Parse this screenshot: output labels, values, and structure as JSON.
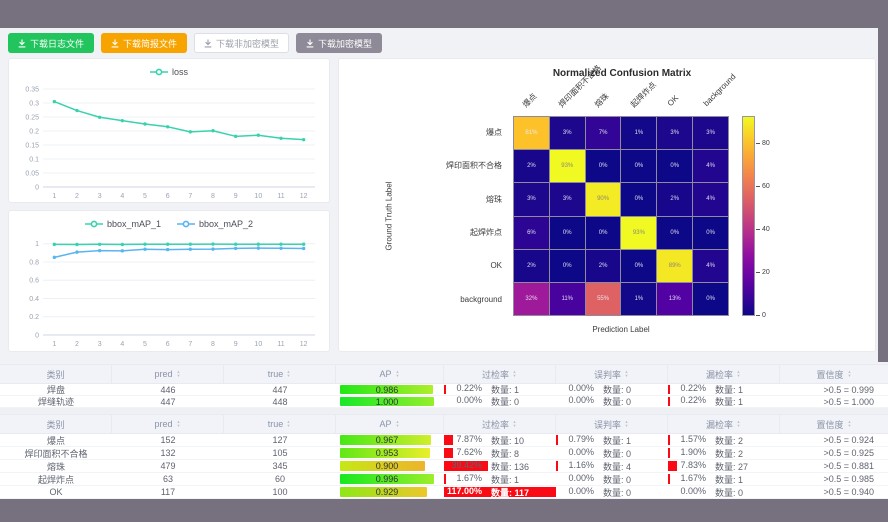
{
  "toolbar": {
    "buttons": [
      {
        "id": "download-log",
        "label": "下载日志文件",
        "style": "green"
      },
      {
        "id": "download-report",
        "label": "下载简报文件",
        "style": "orange"
      },
      {
        "id": "download-plain-model",
        "label": "下载非加密模型",
        "style": "plain"
      },
      {
        "id": "download-encrypted-model",
        "label": "下载加密模型",
        "style": "gray"
      }
    ]
  },
  "chart_data": [
    {
      "type": "line",
      "name": "loss-chart",
      "x": [
        "1",
        "2",
        "3",
        "4",
        "5",
        "6",
        "7",
        "8",
        "9",
        "10",
        "11",
        "12"
      ],
      "series": [
        {
          "name": "loss",
          "color": "#3ad2ae",
          "values": [
            0.305,
            0.273,
            0.249,
            0.237,
            0.225,
            0.215,
            0.197,
            0.201,
            0.181,
            0.185,
            0.174,
            0.169
          ]
        }
      ],
      "yticks": [
        "0",
        "0.05",
        "0.1",
        "0.15",
        "0.2",
        "0.25",
        "0.3",
        "0.35"
      ],
      "ymax": 0.35,
      "legend_position": "top"
    },
    {
      "type": "line",
      "name": "bbox-map-chart",
      "x": [
        "1",
        "2",
        "3",
        "4",
        "5",
        "6",
        "7",
        "8",
        "9",
        "10",
        "11",
        "12"
      ],
      "series": [
        {
          "name": "bbox_mAP_1",
          "color": "#3ad2ae",
          "values": [
            0.993,
            0.992,
            0.994,
            0.992,
            0.995,
            0.995,
            0.995,
            0.996,
            0.995,
            0.995,
            0.995,
            0.995
          ]
        },
        {
          "name": "bbox_mAP_2",
          "color": "#59b4f2",
          "values": [
            0.851,
            0.908,
            0.924,
            0.922,
            0.94,
            0.936,
            0.94,
            0.941,
            0.949,
            0.952,
            0.95,
            0.948
          ]
        }
      ],
      "yticks": [
        "0",
        "0.2",
        "0.4",
        "0.6",
        "0.8",
        "1"
      ],
      "ymax": 1.03,
      "legend_position": "top"
    },
    {
      "type": "heatmap",
      "name": "confusion-matrix",
      "title": "Normalized Confusion Matrix",
      "xlabel": "Prediction Label",
      "ylabel": "Ground Truth Label",
      "labels": [
        "爆点",
        "焊印面积不合格",
        "熔珠",
        "起焊炸点",
        "OK",
        "background"
      ],
      "rows": [
        [
          81,
          3,
          7,
          1,
          3,
          3
        ],
        [
          2,
          93,
          0,
          0,
          0,
          4
        ],
        [
          3,
          3,
          90,
          0,
          2,
          4
        ],
        [
          6,
          0,
          0,
          93,
          0,
          0
        ],
        [
          2,
          0,
          2,
          0,
          89,
          4
        ],
        [
          32,
          11,
          55,
          1,
          13,
          0
        ]
      ],
      "unit": "%",
      "vmax": 93,
      "colorbar_ticks": [
        0,
        20,
        40,
        60,
        80
      ],
      "colormap": "plasma"
    }
  ],
  "confusion_matrix_ref": 2,
  "tables": {
    "headers": [
      "类别",
      "pred",
      "true",
      "AP",
      "过检率",
      "误判率",
      "漏检率",
      "置信度"
    ],
    "qty_label": "数量:",
    "groups": [
      {
        "rows": [
          {
            "cls": "焊盘",
            "pred": "446",
            "true": "447",
            "ap": "0.986",
            "ap_v": 0.986,
            "rates": [
              {
                "pct": "0.22%",
                "qty": "1",
                "v": 0.22
              },
              {
                "pct": "0.00%",
                "qty": "0",
                "v": 0
              },
              {
                "pct": "0.22%",
                "qty": "1",
                "v": 0.22
              }
            ],
            "conf": ">0.5 = 0.999"
          },
          {
            "cls": "焊缝轨迹",
            "pred": "447",
            "true": "448",
            "ap": "1.000",
            "ap_v": 1.0,
            "rates": [
              {
                "pct": "0.00%",
                "qty": "0",
                "v": 0
              },
              {
                "pct": "0.00%",
                "qty": "0",
                "v": 0
              },
              {
                "pct": "0.22%",
                "qty": "1",
                "v": 0.22
              }
            ],
            "conf": ">0.5 = 1.000"
          }
        ]
      },
      {
        "rows": [
          {
            "cls": "爆点",
            "pred": "152",
            "true": "127",
            "ap": "0.967",
            "ap_v": 0.967,
            "rates": [
              {
                "pct": "7.87%",
                "qty": "10",
                "v": 7.87
              },
              {
                "pct": "0.79%",
                "qty": "1",
                "v": 0.79
              },
              {
                "pct": "1.57%",
                "qty": "2",
                "v": 1.57
              }
            ],
            "conf": ">0.5 = 0.924"
          },
          {
            "cls": "焊印面积不合格",
            "pred": "132",
            "true": "105",
            "ap": "0.953",
            "ap_v": 0.953,
            "rates": [
              {
                "pct": "7.62%",
                "qty": "8",
                "v": 7.62
              },
              {
                "pct": "0.00%",
                "qty": "0",
                "v": 0
              },
              {
                "pct": "1.90%",
                "qty": "2",
                "v": 1.9
              }
            ],
            "conf": ">0.5 = 0.925"
          },
          {
            "cls": "熔珠",
            "pred": "479",
            "true": "345",
            "ap": "0.900",
            "ap_v": 0.9,
            "rates": [
              {
                "pct": "39.42%",
                "qty": "136",
                "v": 39.42
              },
              {
                "pct": "1.16%",
                "qty": "4",
                "v": 1.16
              },
              {
                "pct": "7.83%",
                "qty": "27",
                "v": 7.83
              }
            ],
            "conf": ">0.5 = 0.881"
          },
          {
            "cls": "起焊炸点",
            "pred": "63",
            "true": "60",
            "ap": "0.996",
            "ap_v": 0.996,
            "rates": [
              {
                "pct": "1.67%",
                "qty": "1",
                "v": 1.67
              },
              {
                "pct": "0.00%",
                "qty": "0",
                "v": 0
              },
              {
                "pct": "1.67%",
                "qty": "1",
                "v": 1.67
              }
            ],
            "conf": ">0.5 = 0.985"
          },
          {
            "cls": "OK",
            "pred": "117",
            "true": "100",
            "ap": "0.929",
            "ap_v": 0.929,
            "rates": [
              {
                "pct": "117.00%",
                "qty": "117",
                "v": 117
              },
              {
                "pct": "0.00%",
                "qty": "0",
                "v": 0
              },
              {
                "pct": "0.00%",
                "qty": "0",
                "v": 0
              }
            ],
            "conf": ">0.5 = 0.940"
          }
        ]
      }
    ]
  }
}
